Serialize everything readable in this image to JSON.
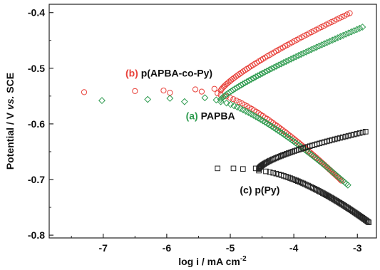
{
  "chart_data": {
    "type": "scatter",
    "title": "",
    "xlabel": "log i / mA cm",
    "xlabel_sup": "-2",
    "ylabel_pre": "Potential / V ",
    "ylabel_italic": "vs.",
    "ylabel_post": " SCE",
    "xlim": [
      -7.85,
      -2.7
    ],
    "ylim": [
      -0.805,
      -0.385
    ],
    "x_ticks": [
      -7,
      -6,
      -5,
      -4,
      -3
    ],
    "x_tick_labels": [
      "-7",
      "-6",
      "-5",
      "-4",
      "-3"
    ],
    "y_ticks": [
      -0.4,
      -0.5,
      -0.6,
      -0.7,
      -0.8
    ],
    "y_tick_labels": [
      "-0.4",
      "-0.5",
      "-0.6",
      "-0.7",
      "-0.8"
    ],
    "annotations": [
      {
        "id": "b",
        "prefix": "(b)",
        "text": " p(APBA-co-Py)",
        "color": "#e8413a",
        "x": -6.65,
        "y": -0.515
      },
      {
        "id": "a",
        "prefix": "(a)",
        "text": " PAPBA",
        "color": "#2e9b4f",
        "x": -5.7,
        "y": -0.592
      },
      {
        "id": "c",
        "prefix": "",
        "text": "(c) p(Py)",
        "color": "#111111",
        "x": -4.85,
        "y": -0.725
      }
    ],
    "series": [
      {
        "id": "b",
        "marker": "circle",
        "color": "#e8413a",
        "branches": [
          {
            "points": [
              [
                -7.3,
                -0.543
              ],
              [
                -6.5,
                -0.541
              ],
              [
                -6.05,
                -0.54
              ],
              [
                -5.95,
                -0.544
              ],
              [
                -5.55,
                -0.538
              ],
              [
                -5.45,
                -0.542
              ],
              [
                -5.25,
                -0.537
              ],
              [
                -5.2,
                -0.545
              ]
            ]
          },
          {
            "start": [
              -5.15,
              -0.54
            ],
            "end": [
              -3.12,
              -0.401
            ],
            "n": 62,
            "shape": 1.25
          },
          {
            "start": [
              -5.15,
              -0.548
            ],
            "end": [
              -3.25,
              -0.702
            ],
            "n": 62,
            "shape": 0.75
          }
        ]
      },
      {
        "id": "a",
        "marker": "diamond",
        "color": "#2e9b4f",
        "branches": [
          {
            "points": [
              [
                -7.02,
                -0.558
              ],
              [
                -6.3,
                -0.556
              ],
              [
                -5.95,
                -0.554
              ],
              [
                -5.72,
                -0.56
              ],
              [
                -5.4,
                -0.553
              ],
              [
                -5.22,
                -0.557
              ]
            ]
          },
          {
            "start": [
              -5.15,
              -0.556
            ],
            "end": [
              -2.92,
              -0.426
            ],
            "n": 62,
            "shape": 1.2
          },
          {
            "start": [
              -5.15,
              -0.56
            ],
            "end": [
              -3.15,
              -0.71
            ],
            "n": 62,
            "shape": 0.75
          }
        ]
      },
      {
        "id": "c",
        "marker": "square",
        "color": "#222222",
        "branches": [
          {
            "points": [
              [
                -5.2,
                -0.68
              ],
              [
                -4.95,
                -0.68
              ],
              [
                -4.8,
                -0.681
              ],
              [
                -4.6,
                -0.68
              ]
            ]
          },
          {
            "start": [
              -4.55,
              -0.681
            ],
            "end": [
              -2.87,
              -0.614
            ],
            "n": 55,
            "shape": 1.5
          },
          {
            "start": [
              -4.55,
              -0.684
            ],
            "end": [
              -2.82,
              -0.777
            ],
            "n": 70,
            "shape": 0.65
          }
        ]
      }
    ],
    "grid": false,
    "legend": "none"
  }
}
